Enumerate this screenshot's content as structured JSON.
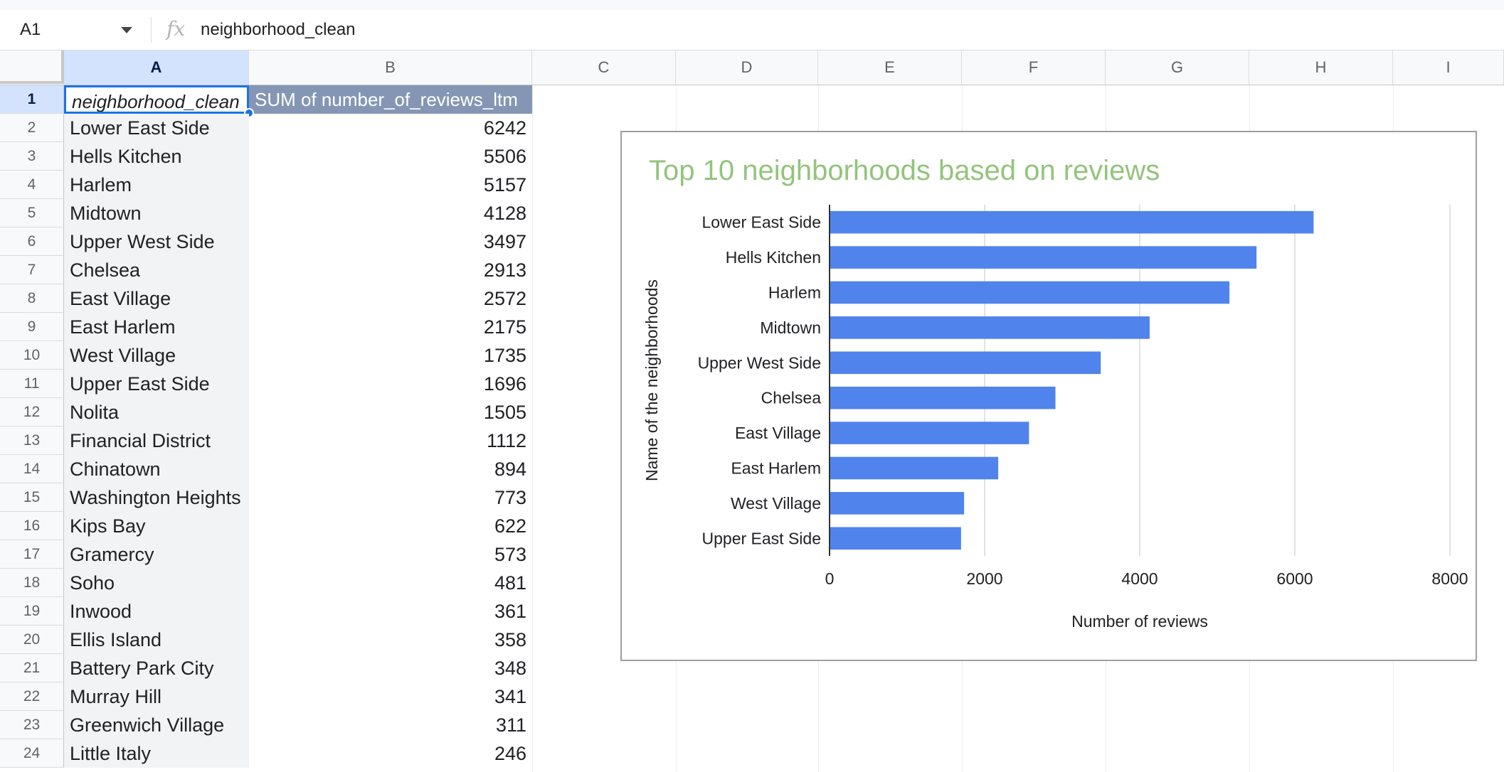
{
  "formula_bar": {
    "cell_ref": "A1",
    "fx_icon": "fx-icon",
    "value": "neighborhood_clean"
  },
  "columns": [
    "A",
    "B",
    "C",
    "D",
    "E",
    "F",
    "G",
    "H",
    "I"
  ],
  "row_numbers": [
    "1",
    "2",
    "3",
    "4",
    "5",
    "6",
    "7",
    "8",
    "9",
    "10",
    "11",
    "12",
    "13",
    "14",
    "15",
    "16",
    "17",
    "18",
    "19",
    "20",
    "21",
    "22",
    "23",
    "24"
  ],
  "table": {
    "headers": [
      "neighborhood_clean",
      "SUM of number_of_reviews_ltm"
    ],
    "rows": [
      [
        "Lower East Side",
        "6242"
      ],
      [
        "Hells Kitchen",
        "5506"
      ],
      [
        "Harlem",
        "5157"
      ],
      [
        "Midtown",
        "4128"
      ],
      [
        "Upper West Side",
        "3497"
      ],
      [
        "Chelsea",
        "2913"
      ],
      [
        "East Village",
        "2572"
      ],
      [
        "East Harlem",
        "2175"
      ],
      [
        "West Village",
        "1735"
      ],
      [
        "Upper East Side",
        "1696"
      ],
      [
        "Nolita",
        "1505"
      ],
      [
        "Financial District",
        "1112"
      ],
      [
        "Chinatown",
        "894"
      ],
      [
        "Washington Heights",
        "773"
      ],
      [
        "Kips Bay",
        "622"
      ],
      [
        "Gramercy",
        "573"
      ],
      [
        "Soho",
        "481"
      ],
      [
        "Inwood",
        "361"
      ],
      [
        "Ellis Island",
        "358"
      ],
      [
        "Battery Park City",
        "348"
      ],
      [
        "Murray Hill",
        "341"
      ],
      [
        "Greenwich Village",
        "311"
      ],
      [
        "Little Italy",
        "246"
      ]
    ]
  },
  "colors": {
    "bar": "#5083ec",
    "title": "#93c47d",
    "header_fill": "#8496b4",
    "selection": "#1a73e8"
  },
  "chart_data": {
    "type": "bar",
    "orientation": "horizontal",
    "title": "Top 10 neighborhoods based on reviews",
    "xlabel": "Number of reviews",
    "ylabel": "Name of the neighborhoods",
    "categories": [
      "Lower East Side",
      "Hells Kitchen",
      "Harlem",
      "Midtown",
      "Upper West Side",
      "Chelsea",
      "East Village",
      "East Harlem",
      "West Village",
      "Upper East Side"
    ],
    "values": [
      6242,
      5506,
      5157,
      4128,
      3497,
      2913,
      2572,
      2175,
      1735,
      1696
    ],
    "xlim": [
      0,
      8000
    ],
    "xticks": [
      "0",
      "2000",
      "4000",
      "6000",
      "8000"
    ],
    "grid": true,
    "legend": "none"
  }
}
